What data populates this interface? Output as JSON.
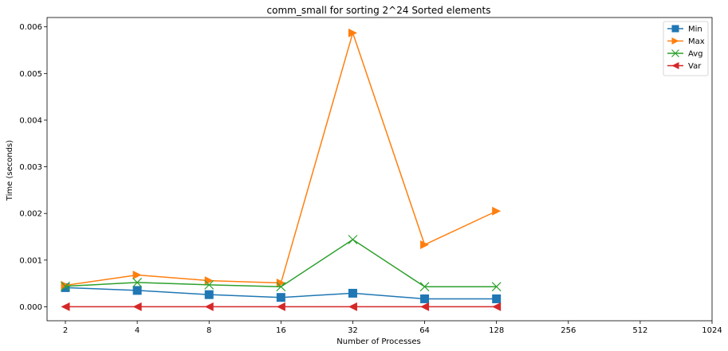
{
  "chart_data": {
    "type": "line",
    "title": "comm_small for sorting 2^24 Sorted elements",
    "xlabel": "Number of Processes",
    "ylabel": "Time (seconds)",
    "x_scale": "log2",
    "x_ticks": [
      2,
      4,
      8,
      16,
      32,
      64,
      128,
      256,
      512,
      1024
    ],
    "x_tick_labels": [
      "2",
      "4",
      "8",
      "16",
      "32",
      "64",
      "128",
      "256",
      "512",
      "1024"
    ],
    "y_ticks": [
      0.0,
      0.001,
      0.002,
      0.003,
      0.004,
      0.005,
      0.006
    ],
    "y_tick_labels": [
      "0.000",
      "0.001",
      "0.002",
      "0.003",
      "0.004",
      "0.005",
      "0.006"
    ],
    "ylim": [
      -0.0003,
      0.0062
    ],
    "grid": false,
    "legend_position": "top-right",
    "x": [
      2,
      4,
      8,
      16,
      32,
      64,
      128
    ],
    "series": [
      {
        "name": "Min",
        "color": "#1f77b4",
        "marker": "square",
        "values": [
          0.00041,
          0.00035,
          0.00026,
          0.0002,
          0.00029,
          0.00017,
          0.00017
        ]
      },
      {
        "name": "Max",
        "color": "#ff7f0e",
        "marker": "triangle-right",
        "values": [
          0.00046,
          0.00068,
          0.00056,
          0.00051,
          0.00587,
          0.00133,
          0.00205
        ]
      },
      {
        "name": "Avg",
        "color": "#2ca02c",
        "marker": "x",
        "values": [
          0.00044,
          0.00052,
          0.00047,
          0.00043,
          0.00144,
          0.00043,
          0.00043
        ]
      },
      {
        "name": "Var",
        "color": "#d62728",
        "marker": "triangle-left",
        "values": [
          0.0,
          0.0,
          0.0,
          0.0,
          0.0,
          0.0,
          0.0
        ]
      }
    ]
  }
}
